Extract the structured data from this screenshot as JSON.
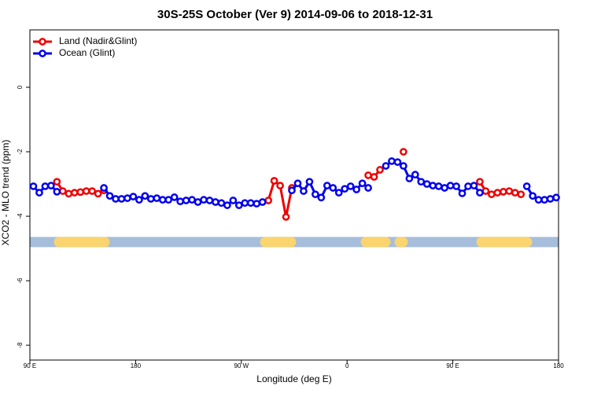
{
  "chart_data": {
    "type": "line",
    "title": "30S-25S October (Ver 9)   2014-09-06 to 2018-12-31",
    "x_label": "Longitude (deg E)",
    "y_label": "XCO2 - MLO trend (ppm)",
    "xlim": [
      90,
      540
    ],
    "ylim": [
      -8.46,
      1.78
    ],
    "xticks": [
      {
        "value": 90,
        "label": "90 E"
      },
      180,
      {
        "value": 270,
        "label": "90 W"
      },
      {
        "value": 360,
        "label": "0"
      },
      {
        "value": 450,
        "label": "90 E"
      },
      {
        "value": 540,
        "label": "180"
      }
    ],
    "yticks": [
      -8,
      -6,
      -4,
      -2,
      0
    ],
    "legend": "top-left",
    "x": [
      93,
      98,
      103,
      108,
      113,
      118,
      123,
      128,
      133,
      138,
      143,
      148,
      153,
      158,
      163,
      168,
      173,
      178,
      183,
      188,
      193,
      198,
      203,
      208,
      213,
      218,
      223,
      228,
      233,
      238,
      243,
      248,
      253,
      258,
      263,
      268,
      273,
      278,
      283,
      288,
      293,
      298,
      303,
      308,
      313,
      318,
      323,
      328,
      333,
      338,
      343,
      348,
      353,
      358,
      363,
      368,
      373,
      378,
      383,
      388,
      393,
      398,
      403,
      408,
      413,
      418,
      423,
      428,
      433,
      438,
      443,
      448,
      453,
      458,
      463,
      468,
      473,
      478,
      483,
      488,
      493,
      498,
      503,
      508,
      513,
      518,
      523,
      528,
      533,
      538
    ],
    "series": [
      {
        "name": "Land (Nadir&Glint)",
        "color": "#ee0000",
        "values": [
          null,
          null,
          null,
          null,
          -2.93,
          -3.22,
          -3.3,
          -3.27,
          -3.25,
          -3.22,
          -3.22,
          -3.3,
          -3.2,
          null,
          null,
          null,
          null,
          null,
          null,
          null,
          null,
          null,
          null,
          null,
          null,
          null,
          null,
          null,
          null,
          null,
          null,
          null,
          null,
          null,
          null,
          null,
          null,
          null,
          null,
          null,
          -3.51,
          -2.9,
          -3.05,
          -4.02,
          -3.12,
          null,
          null,
          null,
          null,
          null,
          null,
          null,
          null,
          null,
          null,
          null,
          null,
          -2.73,
          -2.78,
          -2.56,
          null,
          null,
          null,
          -2.0,
          null,
          null,
          null,
          null,
          null,
          null,
          null,
          null,
          null,
          null,
          null,
          null,
          -2.93,
          -3.22,
          -3.32,
          -3.27,
          -3.24,
          -3.22,
          -3.27,
          -3.32,
          null,
          null,
          null,
          null,
          null,
          null
        ]
      },
      {
        "name": "Ocean (Glint)",
        "color": "#0000ee",
        "values": [
          -3.07,
          -3.27,
          -3.07,
          -3.05,
          -3.24,
          null,
          null,
          null,
          null,
          null,
          null,
          null,
          -3.12,
          -3.37,
          -3.46,
          -3.46,
          -3.44,
          -3.39,
          -3.49,
          -3.37,
          -3.46,
          -3.44,
          -3.49,
          -3.49,
          -3.41,
          -3.54,
          -3.51,
          -3.49,
          -3.56,
          -3.49,
          -3.51,
          -3.56,
          -3.59,
          -3.66,
          -3.51,
          -3.66,
          -3.59,
          -3.59,
          -3.61,
          -3.56,
          null,
          null,
          null,
          null,
          -3.2,
          -2.98,
          -3.22,
          -2.93,
          -3.32,
          -3.42,
          -3.05,
          -3.12,
          -3.27,
          -3.15,
          -3.07,
          -3.17,
          -2.98,
          -3.12,
          null,
          null,
          -2.44,
          -2.29,
          -2.32,
          -2.44,
          -2.83,
          -2.71,
          -2.93,
          -3.0,
          -3.05,
          -3.07,
          -3.12,
          -3.05,
          -3.07,
          -3.29,
          -3.07,
          -3.05,
          -3.27,
          null,
          null,
          null,
          null,
          null,
          null,
          null,
          -3.07,
          -3.37,
          -3.49,
          -3.49,
          -3.46,
          -3.42
        ]
      }
    ],
    "mask_band": {
      "y": -4.8,
      "ocean_color": "#a6bddb",
      "land_color": "#fad46e",
      "land": [
        [
          114.8,
          153.6
        ],
        [
          290.2,
          312.3
        ],
        [
          375.9,
          392.7
        ],
        [
          404.7,
          407.4
        ],
        [
          474.4,
          513.2
        ]
      ]
    }
  }
}
